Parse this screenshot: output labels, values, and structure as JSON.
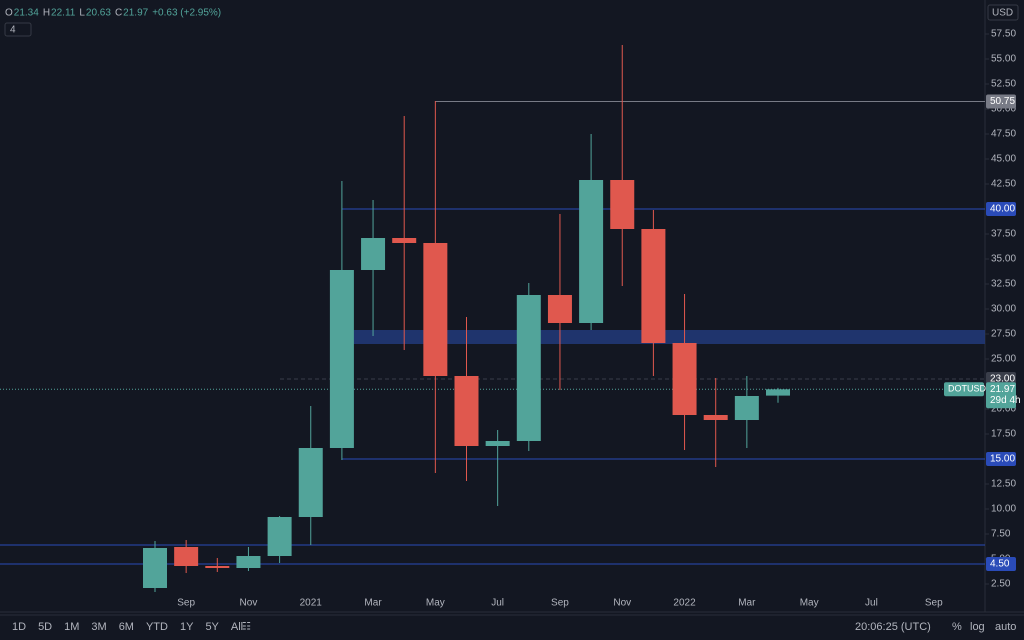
{
  "header": {
    "fields": [
      {
        "key": "O",
        "value": "21.34"
      },
      {
        "key": "H",
        "value": "22.11"
      },
      {
        "key": "L",
        "value": "20.63"
      },
      {
        "key": "C",
        "value": "21.97"
      }
    ],
    "change": "+0.63 (+2.95%)",
    "indicators": "4",
    "currency": "USD"
  },
  "chart_data": {
    "type": "candlestick",
    "categories": [
      null,
      "Sep",
      null,
      "Nov",
      null,
      "2021",
      null,
      "Mar",
      null,
      "May",
      null,
      "Jul",
      null,
      "Sep",
      null,
      "Nov",
      null,
      "2022",
      null,
      "Mar",
      null,
      "May",
      null,
      "Jul",
      null,
      "Sep"
    ],
    "series": [
      {
        "name": "DOTUSD",
        "up_color": "#52a49a",
        "down_color": "#e0584e",
        "open": [
          2.1,
          6.2,
          4.3,
          4.1,
          5.3,
          9.2,
          16.1,
          33.9,
          37.1,
          36.6,
          23.3,
          16.3,
          16.8,
          31.4,
          28.6,
          42.9,
          38.0,
          26.6,
          19.4,
          18.9,
          21.34,
          null,
          null,
          null,
          null,
          null
        ],
        "high": [
          6.8,
          6.9,
          5.1,
          6.2,
          9.3,
          20.3,
          42.8,
          40.9,
          49.3,
          50.8,
          29.2,
          17.9,
          32.6,
          39.5,
          47.5,
          56.4,
          39.9,
          31.5,
          23.1,
          23.3,
          22.11,
          null,
          null,
          null,
          null,
          null
        ],
        "low": [
          1.7,
          3.6,
          3.7,
          3.8,
          4.6,
          6.4,
          14.9,
          27.3,
          25.9,
          13.6,
          12.8,
          10.3,
          15.8,
          21.9,
          27.9,
          32.3,
          23.3,
          15.9,
          14.2,
          16.1,
          20.63,
          null,
          null,
          null,
          null,
          null
        ],
        "close": [
          6.1,
          4.3,
          4.1,
          5.3,
          9.2,
          16.1,
          33.9,
          37.1,
          36.6,
          23.3,
          16.3,
          16.8,
          31.4,
          28.6,
          42.9,
          38.0,
          26.6,
          19.4,
          18.9,
          21.3,
          21.97,
          null,
          null,
          null,
          null,
          null
        ]
      }
    ],
    "ylim": [
      1.4,
      60.9
    ],
    "yticks": [
      {
        "value": 2.5,
        "label": "2.50"
      },
      {
        "value": 5,
        "label": "5.00"
      },
      {
        "value": 7.5,
        "label": "7.50"
      },
      {
        "value": 10,
        "label": "10.00"
      },
      {
        "value": 12.5,
        "label": "12.50"
      },
      {
        "value": 17.5,
        "label": "17.50"
      },
      {
        "value": 20,
        "label": "20.00"
      },
      {
        "value": 25,
        "label": "25.00"
      },
      {
        "value": 27.5,
        "label": "27.50"
      },
      {
        "value": 30,
        "label": "30.00"
      },
      {
        "value": 32.5,
        "label": "32.50"
      },
      {
        "value": 35,
        "label": "35.00"
      },
      {
        "value": 37.5,
        "label": "37.50"
      },
      {
        "value": 42.5,
        "label": "42.50"
      },
      {
        "value": 45,
        "label": "45.00"
      },
      {
        "value": 47.5,
        "label": "47.50"
      },
      {
        "value": 50,
        "label": "50.00"
      },
      {
        "value": 52.5,
        "label": "52.50"
      },
      {
        "value": 55,
        "label": "55.00"
      },
      {
        "value": 57.5,
        "label": "57.50"
      }
    ],
    "levels": [
      {
        "value": 50.75,
        "color": "#787b86"
      },
      {
        "value": {
          "value": 40,
          "label": "40.00"
        },
        "color": "#2a4bb8"
      },
      {
        "value": {
          "value": 23,
          "label": "23.00"
        },
        "color": "#3a3e4a"
      },
      {
        "value": {
          "value": 15,
          "label": "15.00"
        },
        "color": "#2a4bb8"
      },
      {
        "value": 6.4,
        "color": "#2a4bb8"
      },
      {
        "value": {
          "value": 4.5,
          "label": "4.50"
        },
        "color": "#2a4bb8"
      }
    ],
    "zones": [
      {
        "from": 26.5,
        "to": 27.9,
        "color": "#223a7a"
      }
    ],
    "price_tag": {
      "symbol": "DOTUSD",
      "price": 21.97,
      "countdown": "29d 4h"
    }
  },
  "toolbar": {
    "ranges": [
      "1D",
      "5D",
      "1M",
      "3M",
      "6M",
      "YTD",
      "1Y",
      "5Y",
      "All"
    ],
    "clock": "20:06:25 (UTC)",
    "options": [
      "%",
      "log",
      "auto"
    ]
  }
}
